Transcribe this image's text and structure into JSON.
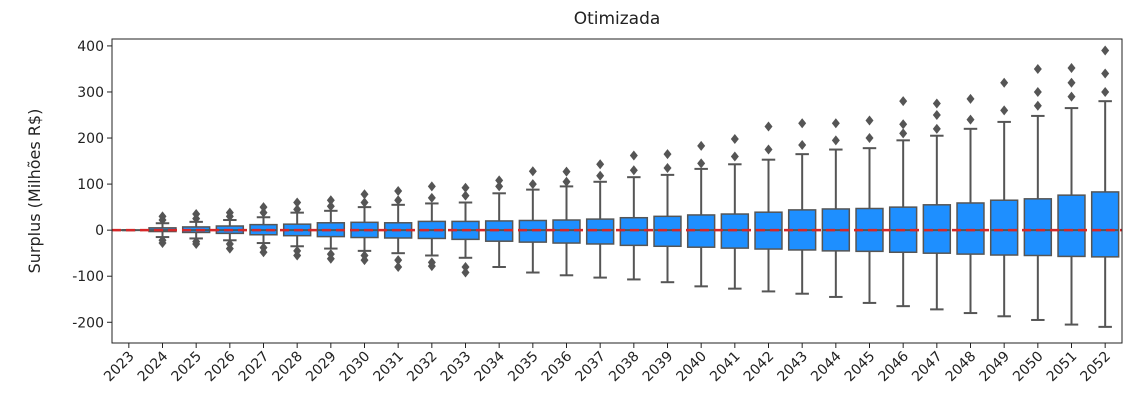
{
  "chart_data": {
    "type": "box",
    "title": "Otimizada",
    "y_label": "Surplus (Milhões R$)",
    "categories": [
      "2023",
      "2024",
      "2025",
      "2026",
      "2027",
      "2028",
      "2029",
      "2030",
      "2031",
      "2032",
      "2033",
      "2034",
      "2035",
      "2036",
      "2037",
      "2038",
      "2039",
      "2040",
      "2041",
      "2042",
      "2043",
      "2044",
      "2045",
      "2046",
      "2047",
      "2048",
      "2049",
      "2050",
      "2051",
      "2052"
    ],
    "boxes": [
      {
        "low": 0,
        "q1": 0,
        "median": 0,
        "q3": 0,
        "high": 0,
        "outliers": []
      },
      {
        "low": -15,
        "q1": -3,
        "median": 0,
        "q3": 5,
        "high": 15,
        "outliers": [
          -28,
          -22,
          22,
          30
        ]
      },
      {
        "low": -18,
        "q1": -5,
        "median": 0,
        "q3": 7,
        "high": 18,
        "outliers": [
          -30,
          -25,
          25,
          35
        ]
      },
      {
        "low": -22,
        "q1": -7,
        "median": 0,
        "q3": 9,
        "high": 22,
        "outliers": [
          -40,
          -30,
          30,
          38
        ]
      },
      {
        "low": -28,
        "q1": -10,
        "median": 0,
        "q3": 12,
        "high": 28,
        "outliers": [
          -48,
          -38,
          38,
          50
        ]
      },
      {
        "low": -35,
        "q1": -12,
        "median": 0,
        "q3": 13,
        "high": 38,
        "outliers": [
          -55,
          -45,
          45,
          60
        ]
      },
      {
        "low": -40,
        "q1": -14,
        "median": 0,
        "q3": 16,
        "high": 42,
        "outliers": [
          -62,
          -52,
          52,
          65
        ]
      },
      {
        "low": -45,
        "q1": -16,
        "median": 0,
        "q3": 17,
        "high": 50,
        "outliers": [
          -65,
          -55,
          60,
          78
        ]
      },
      {
        "low": -50,
        "q1": -17,
        "median": 0,
        "q3": 16,
        "high": 55,
        "outliers": [
          -80,
          -65,
          65,
          85
        ]
      },
      {
        "low": -55,
        "q1": -18,
        "median": 0,
        "q3": 19,
        "high": 58,
        "outliers": [
          -78,
          -70,
          70,
          95
        ]
      },
      {
        "low": -60,
        "q1": -20,
        "median": 0,
        "q3": 19,
        "high": 60,
        "outliers": [
          -92,
          -80,
          75,
          92
        ]
      },
      {
        "low": -80,
        "q1": -24,
        "median": 0,
        "q3": 20,
        "high": 80,
        "outliers": [
          95,
          108
        ]
      },
      {
        "low": -92,
        "q1": -26,
        "median": 0,
        "q3": 21,
        "high": 88,
        "outliers": [
          100,
          128
        ]
      },
      {
        "low": -98,
        "q1": -28,
        "median": 0,
        "q3": 22,
        "high": 95,
        "outliers": [
          105,
          127
        ]
      },
      {
        "low": -103,
        "q1": -30,
        "median": 0,
        "q3": 24,
        "high": 105,
        "outliers": [
          118,
          143
        ]
      },
      {
        "low": -107,
        "q1": -33,
        "median": 0,
        "q3": 27,
        "high": 115,
        "outliers": [
          130,
          162
        ]
      },
      {
        "low": -113,
        "q1": -35,
        "median": 0,
        "q3": 30,
        "high": 120,
        "outliers": [
          135,
          165
        ]
      },
      {
        "low": -122,
        "q1": -37,
        "median": 0,
        "q3": 33,
        "high": 133,
        "outliers": [
          145,
          183
        ]
      },
      {
        "low": -127,
        "q1": -39,
        "median": 0,
        "q3": 35,
        "high": 143,
        "outliers": [
          160,
          198
        ]
      },
      {
        "low": -133,
        "q1": -41,
        "median": 0,
        "q3": 39,
        "high": 153,
        "outliers": [
          175,
          225
        ]
      },
      {
        "low": -138,
        "q1": -43,
        "median": 0,
        "q3": 44,
        "high": 165,
        "outliers": [
          185,
          232
        ]
      },
      {
        "low": -145,
        "q1": -45,
        "median": 0,
        "q3": 46,
        "high": 175,
        "outliers": [
          195,
          232
        ]
      },
      {
        "low": -158,
        "q1": -46,
        "median": 0,
        "q3": 47,
        "high": 178,
        "outliers": [
          200,
          238
        ]
      },
      {
        "low": -165,
        "q1": -48,
        "median": 0,
        "q3": 50,
        "high": 195,
        "outliers": [
          210,
          230,
          280
        ]
      },
      {
        "low": -172,
        "q1": -50,
        "median": 0,
        "q3": 55,
        "high": 205,
        "outliers": [
          220,
          250,
          275
        ]
      },
      {
        "low": -180,
        "q1": -52,
        "median": 0,
        "q3": 59,
        "high": 220,
        "outliers": [
          240,
          285
        ]
      },
      {
        "low": -187,
        "q1": -54,
        "median": 0,
        "q3": 65,
        "high": 235,
        "outliers": [
          260,
          320
        ]
      },
      {
        "low": -195,
        "q1": -55,
        "median": 0,
        "q3": 68,
        "high": 248,
        "outliers": [
          270,
          300,
          350
        ]
      },
      {
        "low": -205,
        "q1": -57,
        "median": 0,
        "q3": 76,
        "high": 265,
        "outliers": [
          290,
          320,
          352
        ]
      },
      {
        "low": -210,
        "q1": -58,
        "median": 0,
        "q3": 83,
        "high": 280,
        "outliers": [
          300,
          340,
          390
        ]
      }
    ],
    "color": "#1e8fff",
    "edge_color": "#555555",
    "reference_line": {
      "value": 0,
      "color": "#d62728"
    },
    "ylim": [
      -245,
      415
    ],
    "yticks": [
      -200,
      -100,
      0,
      100,
      200,
      300,
      400
    ]
  }
}
